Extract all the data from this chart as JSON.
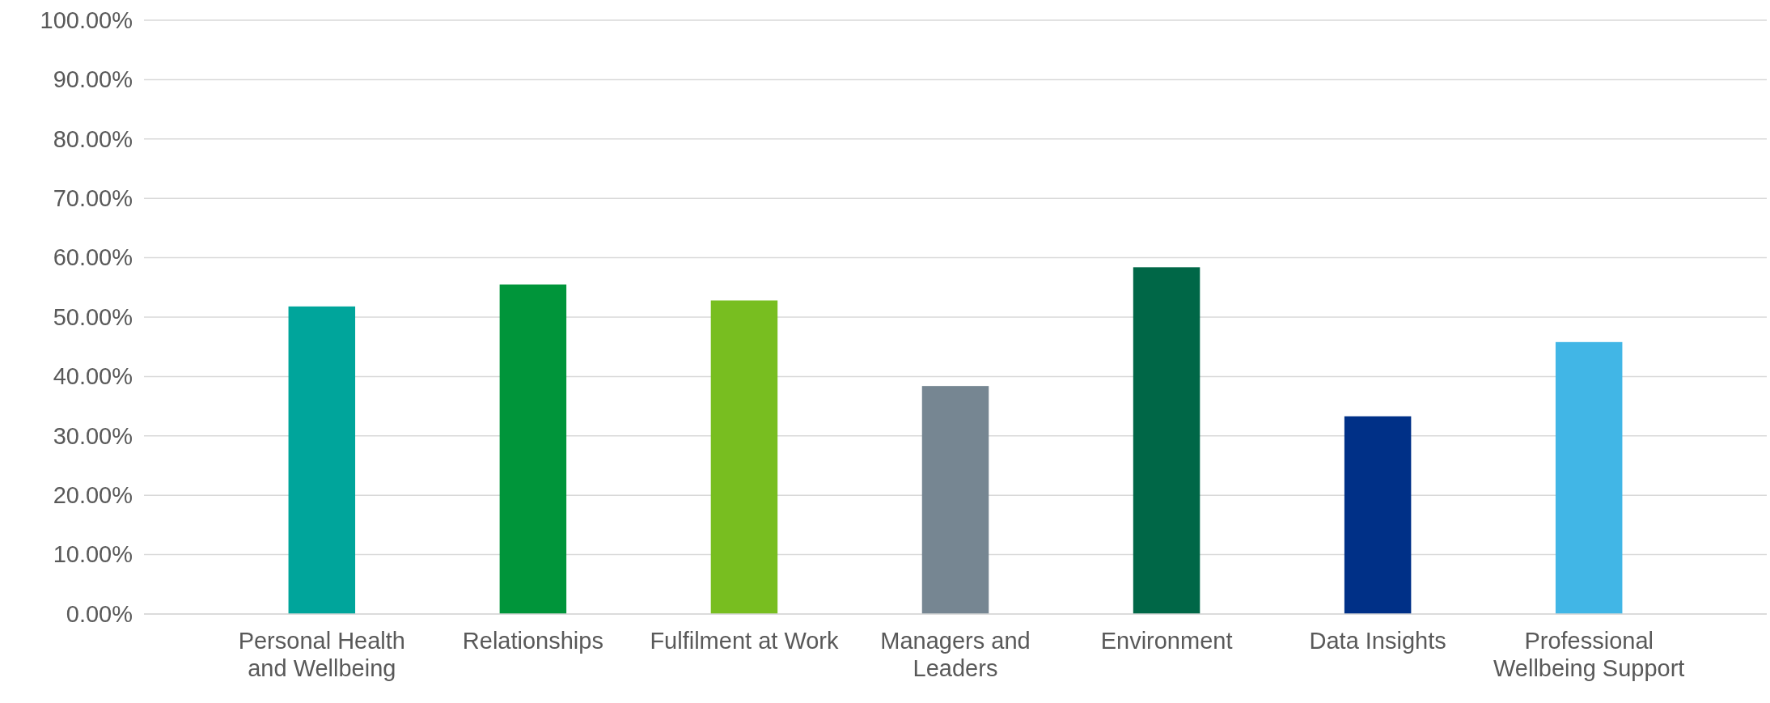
{
  "chart_data": {
    "type": "bar",
    "categories": [
      "Personal Health and Wellbeing",
      "Relationships",
      "Fulfilment at Work",
      "Managers and Leaders",
      "Environment",
      "Data Insights",
      "Professional Wellbeing Support"
    ],
    "values": [
      51.8,
      55.5,
      52.8,
      38.4,
      58.4,
      33.3,
      45.8
    ],
    "colors": [
      "#00a59b",
      "#00953a",
      "#78be20",
      "#768692",
      "#006747",
      "#003087",
      "#41b6e6"
    ],
    "ylim": [
      0,
      100
    ],
    "yticks": [
      {
        "value": 0,
        "label": "0.00%"
      },
      {
        "value": 10,
        "label": "10.00%"
      },
      {
        "value": 20,
        "label": "20.00%"
      },
      {
        "value": 30,
        "label": "30.00%"
      },
      {
        "value": 40,
        "label": "40.00%"
      },
      {
        "value": 50,
        "label": "50.00%"
      },
      {
        "value": 60,
        "label": "60.00%"
      },
      {
        "value": 70,
        "label": "70.00%"
      },
      {
        "value": 80,
        "label": "80.00%"
      },
      {
        "value": 90,
        "label": "90.00%"
      },
      {
        "value": 100,
        "label": "100.00%"
      }
    ],
    "grid": "y"
  }
}
